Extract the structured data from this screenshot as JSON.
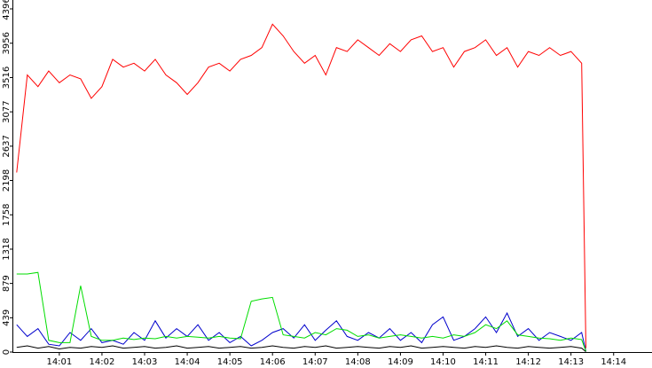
{
  "chart_data": {
    "type": "line",
    "x": [
      0,
      0.25,
      0.5,
      0.75,
      1,
      1.25,
      1.5,
      1.75,
      2,
      2.25,
      2.5,
      2.75,
      3,
      3.25,
      3.5,
      3.75,
      4,
      4.25,
      4.5,
      4.75,
      5,
      5.25,
      5.5,
      5.75,
      6,
      6.25,
      6.5,
      6.75,
      7,
      7.25,
      7.5,
      7.75,
      8,
      8.25,
      8.5,
      8.75,
      9,
      9.25,
      9.5,
      9.75,
      10,
      10.25,
      10.5,
      10.75,
      11,
      11.25,
      11.5,
      11.75,
      12,
      12.25,
      12.5,
      12.75,
      13,
      13.25,
      13.35
    ],
    "series": [
      {
        "color": "#ff0000",
        "values": [
          2300,
          3550,
          3400,
          3600,
          3450,
          3550,
          3500,
          3250,
          3400,
          3750,
          3650,
          3700,
          3600,
          3750,
          3550,
          3450,
          3300,
          3450,
          3650,
          3700,
          3600,
          3750,
          3800,
          3900,
          4200,
          4050,
          3850,
          3700,
          3800,
          3550,
          3900,
          3850,
          4000,
          3900,
          3800,
          3950,
          3850,
          4000,
          4050,
          3850,
          3900,
          3650,
          3850,
          3900,
          4000,
          3800,
          3900,
          3650,
          3850,
          3800,
          3900,
          3800,
          3850,
          3700,
          50
        ]
      },
      {
        "color": "#00dd00",
        "values": [
          1000,
          1000,
          1020,
          150,
          120,
          120,
          850,
          200,
          150,
          150,
          180,
          160,
          180,
          170,
          200,
          180,
          200,
          190,
          180,
          200,
          180,
          170,
          650,
          680,
          700,
          220,
          200,
          180,
          250,
          220,
          300,
          280,
          200,
          220,
          180,
          200,
          220,
          200,
          180,
          200,
          180,
          220,
          200,
          250,
          350,
          300,
          400,
          220,
          200,
          180,
          170,
          150,
          180,
          160,
          10
        ]
      },
      {
        "color": "#0000cc",
        "values": [
          350,
          200,
          300,
          100,
          80,
          250,
          150,
          300,
          120,
          150,
          100,
          250,
          150,
          400,
          180,
          300,
          200,
          350,
          150,
          250,
          120,
          200,
          80,
          150,
          250,
          300,
          180,
          350,
          150,
          280,
          400,
          200,
          150,
          250,
          180,
          300,
          150,
          250,
          120,
          350,
          450,
          150,
          200,
          300,
          450,
          250,
          500,
          200,
          300,
          150,
          250,
          200,
          150,
          250,
          10
        ]
      },
      {
        "color": "#000000",
        "values": [
          60,
          80,
          50,
          70,
          40,
          60,
          50,
          70,
          60,
          80,
          50,
          60,
          70,
          50,
          60,
          80,
          50,
          60,
          70,
          50,
          60,
          70,
          50,
          60,
          80,
          60,
          50,
          70,
          60,
          80,
          50,
          60,
          70,
          60,
          50,
          70,
          60,
          80,
          50,
          60,
          70,
          60,
          50,
          70,
          60,
          80,
          60,
          50,
          70,
          60,
          50,
          60,
          70,
          50,
          5
        ]
      }
    ],
    "xlim": [
      -0.1,
      14.9
    ],
    "xticks": [
      {
        "value": 1,
        "label": "14:01"
      },
      {
        "value": 2,
        "label": "14:02"
      },
      {
        "value": 3,
        "label": "14:03"
      },
      {
        "value": 4,
        "label": "14:04"
      },
      {
        "value": 5,
        "label": "14:05"
      },
      {
        "value": 6,
        "label": "14:06"
      },
      {
        "value": 7,
        "label": "14:07"
      },
      {
        "value": 8,
        "label": "14:08"
      },
      {
        "value": 9,
        "label": "14:09"
      },
      {
        "value": 10,
        "label": "14:10"
      },
      {
        "value": 11,
        "label": "14:11"
      },
      {
        "value": 12,
        "label": "14:12"
      },
      {
        "value": 13,
        "label": "14:13"
      },
      {
        "value": 14,
        "label": "14:14"
      }
    ],
    "ylim": [
      0,
      4396
    ],
    "yticks": [
      0,
      439,
      879,
      1318,
      1758,
      2198,
      2637,
      3077,
      3516,
      3956,
      4396
    ]
  }
}
